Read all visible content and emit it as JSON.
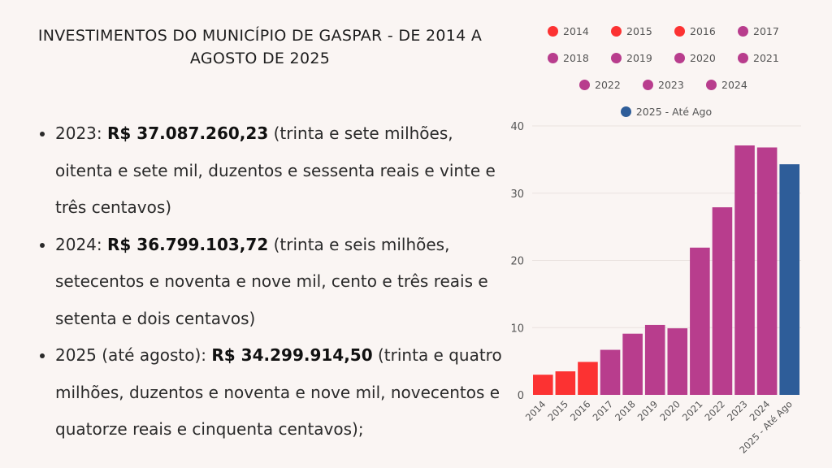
{
  "title": [
    "INVESTIMENTOS DO MUNICÍPIO DE GASPAR - DE 2014 A",
    "AGOSTO DE 2025"
  ],
  "bullets": [
    {
      "prefix": "2023:  ",
      "amount": "R$ 37.087.260,23",
      "text": " (trinta e sete milhões, oitenta e sete mil, duzentos e sessenta reais e vinte e três centavos)"
    },
    {
      "prefix": "2024:  ",
      "amount": "R$ 36.799.103,72",
      "text": " (trinta e seis milhões, setecentos e noventa e nove mil, cento e três reais e setenta e dois centavos)"
    },
    {
      "prefix": "2025 (até agosto): ",
      "amount": "R$ 34.299.914,50",
      "text": " (trinta e quatro milhões, duzentos e noventa e nove mil, novecentos e quatorze reais e cinquenta centavos);"
    }
  ],
  "colors": {
    "red": "#fc3232",
    "purple": "#b83d8d",
    "blue": "#2e5d99"
  },
  "chart_data": {
    "type": "bar",
    "categories": [
      "2014",
      "2015",
      "2016",
      "2017",
      "2018",
      "2019",
      "2020",
      "2021",
      "2022",
      "2023",
      "2024",
      "2025 - Até Ago"
    ],
    "values": [
      3.0,
      3.5,
      4.9,
      6.7,
      9.1,
      10.4,
      9.9,
      21.9,
      27.9,
      37.1,
      36.8,
      34.3
    ],
    "colors": [
      "red",
      "red",
      "red",
      "purple",
      "purple",
      "purple",
      "purple",
      "purple",
      "purple",
      "purple",
      "purple",
      "blue"
    ],
    "ylim": [
      0,
      40
    ],
    "yticks": [
      0,
      10,
      20,
      30,
      40
    ],
    "grid": true,
    "legend_placement": "top",
    "xlabel": "",
    "ylabel": ""
  }
}
